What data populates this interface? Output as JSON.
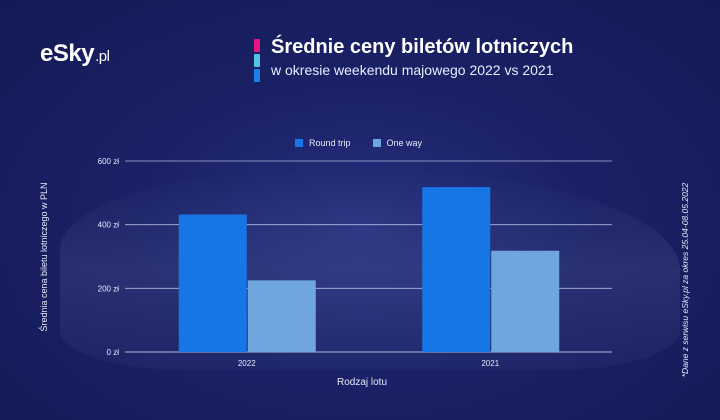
{
  "brand": {
    "logo_text": "eSky",
    "logo_suffix": ".pl"
  },
  "header": {
    "title": "Średnie ceny biletów lotniczych",
    "subtitle": "w okresie weekendu majowego 2022 vs 2021",
    "accent_colors": [
      "#e8177f",
      "#4fc3e8",
      "#1e7fe6"
    ]
  },
  "footnote": "*Dane z serwisu eSky.pl za okres 25.04-08.05.2022",
  "colors": {
    "round_trip": "#1776e6",
    "one_way": "#6fa6e0",
    "gridline": "#c9d2f2"
  },
  "chart_data": {
    "type": "bar",
    "categories": [
      "2022",
      "2021"
    ],
    "series": [
      {
        "name": "Round trip",
        "values": [
          432,
          518
        ]
      },
      {
        "name": "One way",
        "values": [
          225,
          318
        ]
      }
    ],
    "xlabel": "Rodzaj lotu",
    "ylabel": "Średnia cena biletu lotniczego w PLN",
    "ylim": [
      0,
      600
    ],
    "yticks": [
      "0 zł",
      "200 zł",
      "400 zł",
      "600 zł"
    ],
    "ytick_values": [
      0,
      200,
      400,
      600
    ],
    "grid": true,
    "legend_position": "top-center"
  }
}
